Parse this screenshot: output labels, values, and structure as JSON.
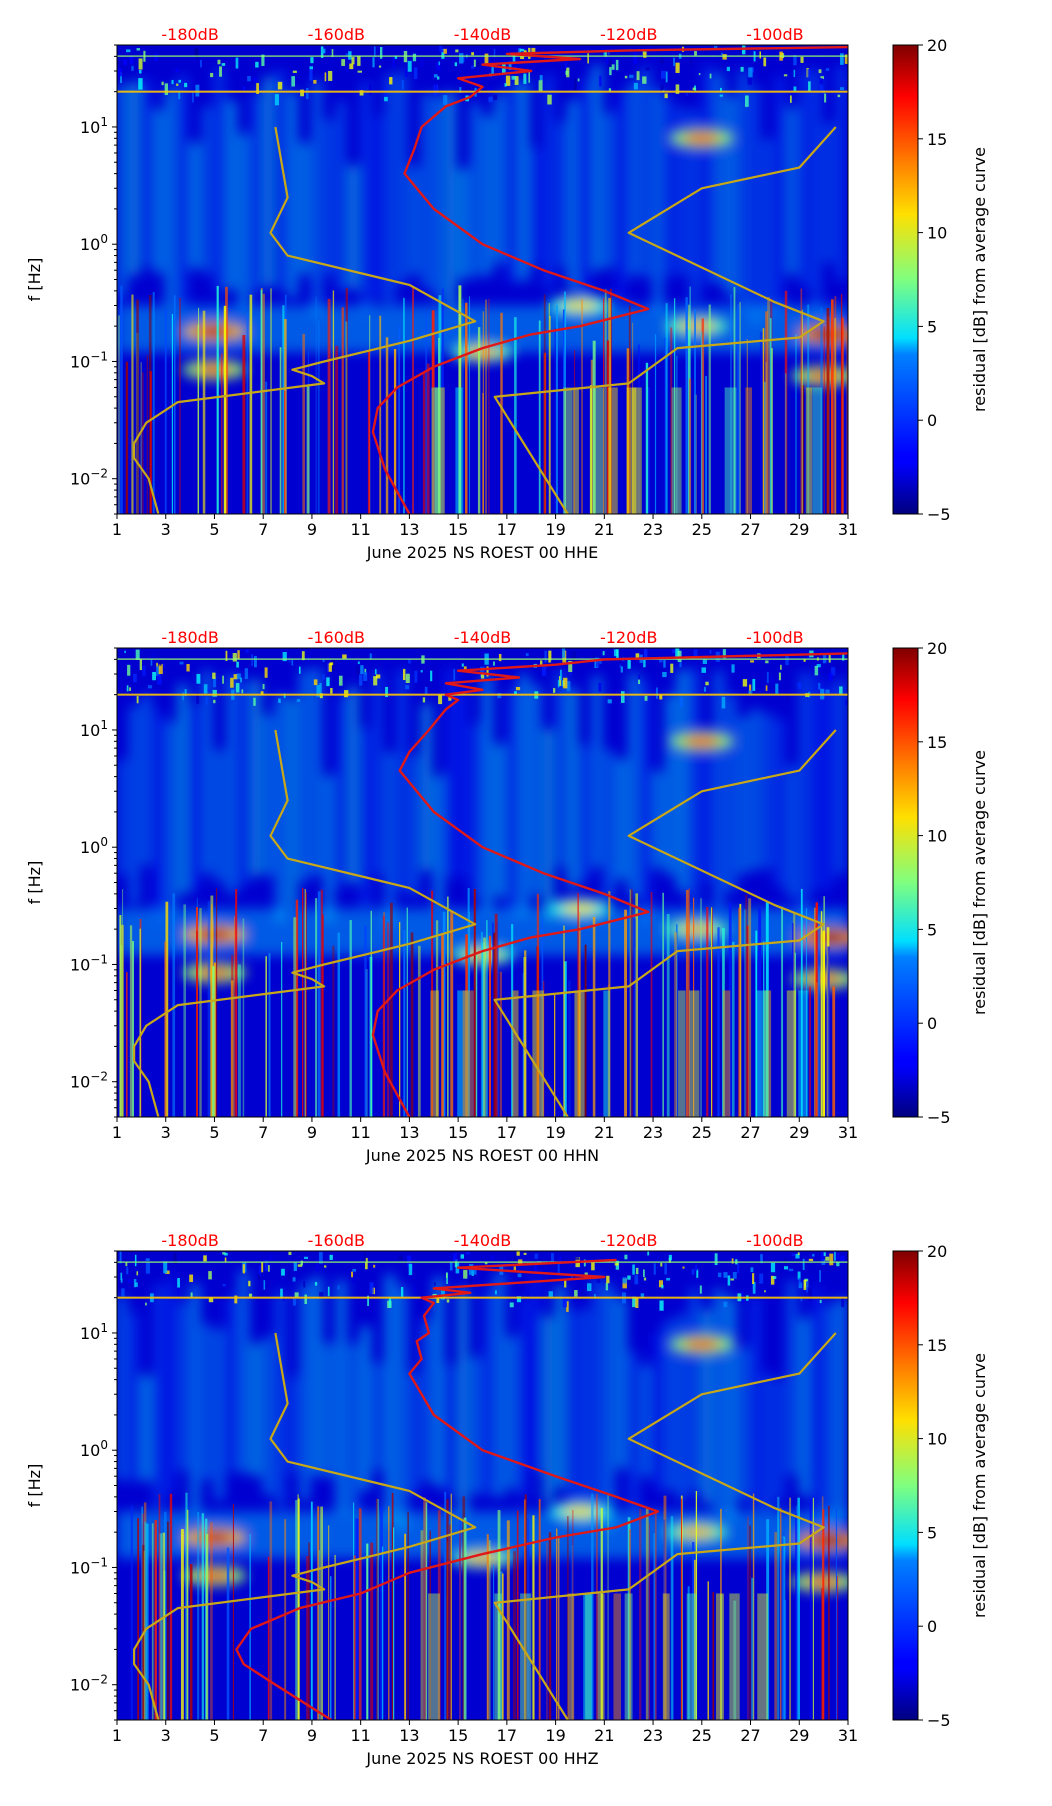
{
  "chart_data": [
    {
      "type": "heatmap",
      "xlabel": "June 2025 NS ROEST 00 HHE",
      "ylabel": "f [Hz]",
      "colorbar_label": "residual [dB] from average curve",
      "x_ticks": [
        "1",
        "3",
        "5",
        "7",
        "9",
        "11",
        "13",
        "15",
        "17",
        "19",
        "21",
        "23",
        "25",
        "27",
        "29",
        "31"
      ],
      "xlim": [
        1,
        31
      ],
      "ylim": [
        0.005,
        50
      ],
      "yscale": "log",
      "y_ticks": [
        {
          "value": 0.01,
          "base": "10",
          "exp": "−2"
        },
        {
          "value": 0.1,
          "base": "10",
          "exp": "−1"
        },
        {
          "value": 1,
          "base": "10",
          "exp": "0"
        },
        {
          "value": 10,
          "base": "10",
          "exp": "1"
        }
      ],
      "clim": [
        -5,
        20
      ],
      "colorbar_ticks": [
        "20",
        "15",
        "10",
        "5",
        "0",
        "−5"
      ],
      "top_db_labels": [
        {
          "x": 4,
          "text": "-180dB"
        },
        {
          "x": 10,
          "text": "-160dB"
        },
        {
          "x": 16,
          "text": "-140dB"
        },
        {
          "x": 22,
          "text": "-120dB"
        },
        {
          "x": 28,
          "text": "-100dB"
        }
      ],
      "hot_spots": [
        {
          "x": 5.0,
          "f": 0.18,
          "value": 18
        },
        {
          "x": 5.0,
          "f": 0.085,
          "value": 14
        },
        {
          "x": 16.0,
          "f": 0.12,
          "value": 12
        },
        {
          "x": 20.0,
          "f": 0.3,
          "value": 11
        },
        {
          "x": 24.8,
          "f": 0.2,
          "value": 12
        },
        {
          "x": 25.0,
          "f": 8.0,
          "value": 14
        },
        {
          "x": 30.2,
          "f": 0.17,
          "value": 19
        },
        {
          "x": 30.0,
          "f": 0.075,
          "value": 14
        }
      ],
      "series": [
        {
          "name": "high noise model",
          "color": "#c8a818",
          "points": [
            [
              7.5,
              10
            ],
            [
              8.0,
              2.5
            ],
            [
              7.3,
              1.25
            ],
            [
              8.0,
              0.8
            ],
            [
              13.0,
              0.45
            ],
            [
              15.7,
              0.22
            ],
            [
              13.0,
              0.15
            ],
            [
              9.5,
              0.1
            ],
            [
              8.2,
              0.085
            ],
            [
              9.0,
              0.075
            ],
            [
              9.5,
              0.065
            ],
            [
              3.5,
              0.045
            ],
            [
              2.2,
              0.03
            ],
            [
              1.7,
              0.02
            ],
            [
              1.7,
              0.015
            ],
            [
              2.3,
              0.01
            ],
            [
              2.7,
              0.005
            ]
          ]
        },
        {
          "name": "low noise model",
          "color": "#c8a818",
          "points": [
            [
              19.5,
              0.005
            ],
            [
              16.5,
              0.05
            ],
            [
              22.0,
              0.065
            ],
            [
              24.0,
              0.13
            ],
            [
              29.0,
              0.16
            ],
            [
              30.0,
              0.22
            ],
            [
              28.0,
              0.32
            ],
            [
              22.0,
              1.25
            ],
            [
              25.0,
              3.0
            ],
            [
              29.0,
              4.5
            ],
            [
              30.5,
              10
            ]
          ]
        },
        {
          "name": "mean PSD",
          "color": "#e01818",
          "points": [
            [
              13.0,
              0.005
            ],
            [
              12.0,
              0.012
            ],
            [
              11.5,
              0.025
            ],
            [
              11.7,
              0.04
            ],
            [
              12.5,
              0.06
            ],
            [
              14.0,
              0.09
            ],
            [
              16.0,
              0.13
            ],
            [
              18.0,
              0.17
            ],
            [
              20.0,
              0.2
            ],
            [
              22.8,
              0.28
            ],
            [
              21.0,
              0.4
            ],
            [
              18.5,
              0.6
            ],
            [
              16.0,
              1.0
            ],
            [
              14.0,
              2.0
            ],
            [
              12.8,
              4.0
            ],
            [
              13.2,
              6.5
            ],
            [
              13.5,
              10
            ],
            [
              14.5,
              15
            ],
            [
              15.5,
              18
            ],
            [
              16.0,
              22
            ],
            [
              15.0,
              26
            ],
            [
              18.0,
              30
            ],
            [
              16.0,
              34
            ],
            [
              20.0,
              38
            ],
            [
              17.0,
              42
            ],
            [
              22.0,
              45
            ],
            [
              31.0,
              48
            ]
          ]
        }
      ]
    },
    {
      "type": "heatmap",
      "xlabel": "June 2025 NS ROEST 00 HHN",
      "ylabel": "f [Hz]",
      "colorbar_label": "residual [dB] from average curve",
      "x_ticks": [
        "1",
        "3",
        "5",
        "7",
        "9",
        "11",
        "13",
        "15",
        "17",
        "19",
        "21",
        "23",
        "25",
        "27",
        "29",
        "31"
      ],
      "xlim": [
        1,
        31
      ],
      "ylim": [
        0.005,
        50
      ],
      "yscale": "log",
      "y_ticks": [
        {
          "value": 0.01,
          "base": "10",
          "exp": "−2"
        },
        {
          "value": 0.1,
          "base": "10",
          "exp": "−1"
        },
        {
          "value": 1,
          "base": "10",
          "exp": "0"
        },
        {
          "value": 10,
          "base": "10",
          "exp": "1"
        }
      ],
      "clim": [
        -5,
        20
      ],
      "colorbar_ticks": [
        "20",
        "15",
        "10",
        "5",
        "0",
        "−5"
      ],
      "top_db_labels": [
        {
          "x": 4,
          "text": "-180dB"
        },
        {
          "x": 10,
          "text": "-160dB"
        },
        {
          "x": 16,
          "text": "-140dB"
        },
        {
          "x": 22,
          "text": "-120dB"
        },
        {
          "x": 28,
          "text": "-100dB"
        }
      ],
      "hot_spots": [
        {
          "x": 5.0,
          "f": 0.18,
          "value": 18
        },
        {
          "x": 5.0,
          "f": 0.085,
          "value": 14
        },
        {
          "x": 16.0,
          "f": 0.12,
          "value": 12
        },
        {
          "x": 20.0,
          "f": 0.3,
          "value": 11
        },
        {
          "x": 24.8,
          "f": 0.2,
          "value": 12
        },
        {
          "x": 25.0,
          "f": 8.0,
          "value": 14
        },
        {
          "x": 30.2,
          "f": 0.17,
          "value": 19
        },
        {
          "x": 30.0,
          "f": 0.075,
          "value": 14
        }
      ],
      "series": [
        {
          "name": "high noise model",
          "color": "#c8a818",
          "points": [
            [
              7.5,
              10
            ],
            [
              8.0,
              2.5
            ],
            [
              7.3,
              1.25
            ],
            [
              8.0,
              0.8
            ],
            [
              13.0,
              0.45
            ],
            [
              15.7,
              0.22
            ],
            [
              13.0,
              0.15
            ],
            [
              9.5,
              0.1
            ],
            [
              8.2,
              0.085
            ],
            [
              9.0,
              0.075
            ],
            [
              9.5,
              0.065
            ],
            [
              3.5,
              0.045
            ],
            [
              2.2,
              0.03
            ],
            [
              1.7,
              0.02
            ],
            [
              1.7,
              0.015
            ],
            [
              2.3,
              0.01
            ],
            [
              2.7,
              0.005
            ]
          ]
        },
        {
          "name": "low noise model",
          "color": "#c8a818",
          "points": [
            [
              19.5,
              0.005
            ],
            [
              16.5,
              0.05
            ],
            [
              22.0,
              0.065
            ],
            [
              24.0,
              0.13
            ],
            [
              29.0,
              0.16
            ],
            [
              30.0,
              0.22
            ],
            [
              28.0,
              0.32
            ],
            [
              22.0,
              1.25
            ],
            [
              25.0,
              3.0
            ],
            [
              29.0,
              4.5
            ],
            [
              30.5,
              10
            ]
          ]
        },
        {
          "name": "mean PSD",
          "color": "#e01818",
          "points": [
            [
              13.0,
              0.005
            ],
            [
              12.0,
              0.012
            ],
            [
              11.5,
              0.025
            ],
            [
              11.7,
              0.04
            ],
            [
              12.5,
              0.06
            ],
            [
              14.0,
              0.09
            ],
            [
              16.0,
              0.13
            ],
            [
              18.0,
              0.17
            ],
            [
              20.0,
              0.2
            ],
            [
              22.8,
              0.28
            ],
            [
              21.0,
              0.4
            ],
            [
              18.5,
              0.6
            ],
            [
              16.0,
              1.0
            ],
            [
              14.0,
              2.0
            ],
            [
              12.6,
              4.5
            ],
            [
              13.0,
              6.5
            ],
            [
              13.8,
              10
            ],
            [
              14.5,
              15
            ],
            [
              15.0,
              18
            ],
            [
              14.5,
              20
            ],
            [
              16.0,
              22
            ],
            [
              14.5,
              25
            ],
            [
              17.5,
              28
            ],
            [
              15.0,
              32
            ],
            [
              19.0,
              36
            ],
            [
              21.0,
              40
            ],
            [
              31.0,
              45
            ]
          ]
        }
      ]
    },
    {
      "type": "heatmap",
      "xlabel": "June 2025 NS ROEST 00 HHZ",
      "ylabel": "f [Hz]",
      "colorbar_label": "residual [dB] from average curve",
      "x_ticks": [
        "1",
        "3",
        "5",
        "7",
        "9",
        "11",
        "13",
        "15",
        "17",
        "19",
        "21",
        "23",
        "25",
        "27",
        "29",
        "31"
      ],
      "xlim": [
        1,
        31
      ],
      "ylim": [
        0.005,
        50
      ],
      "yscale": "log",
      "y_ticks": [
        {
          "value": 0.01,
          "base": "10",
          "exp": "−2"
        },
        {
          "value": 0.1,
          "base": "10",
          "exp": "−1"
        },
        {
          "value": 1,
          "base": "10",
          "exp": "0"
        },
        {
          "value": 10,
          "base": "10",
          "exp": "1"
        }
      ],
      "clim": [
        -5,
        20
      ],
      "colorbar_ticks": [
        "20",
        "15",
        "10",
        "5",
        "0",
        "−5"
      ],
      "top_db_labels": [
        {
          "x": 4,
          "text": "-180dB"
        },
        {
          "x": 10,
          "text": "-160dB"
        },
        {
          "x": 16,
          "text": "-140dB"
        },
        {
          "x": 22,
          "text": "-120dB"
        },
        {
          "x": 28,
          "text": "-100dB"
        }
      ],
      "hot_spots": [
        {
          "x": 5.0,
          "f": 0.18,
          "value": 18
        },
        {
          "x": 5.0,
          "f": 0.085,
          "value": 14
        },
        {
          "x": 16.0,
          "f": 0.12,
          "value": 12
        },
        {
          "x": 20.0,
          "f": 0.3,
          "value": 11
        },
        {
          "x": 24.8,
          "f": 0.2,
          "value": 12
        },
        {
          "x": 25.0,
          "f": 8.0,
          "value": 14
        },
        {
          "x": 30.2,
          "f": 0.17,
          "value": 19
        },
        {
          "x": 30.0,
          "f": 0.075,
          "value": 14
        }
      ],
      "series": [
        {
          "name": "high noise model",
          "color": "#c8a818",
          "points": [
            [
              7.5,
              10
            ],
            [
              8.0,
              2.5
            ],
            [
              7.3,
              1.25
            ],
            [
              8.0,
              0.8
            ],
            [
              13.0,
              0.45
            ],
            [
              15.7,
              0.22
            ],
            [
              13.0,
              0.15
            ],
            [
              9.5,
              0.1
            ],
            [
              8.2,
              0.085
            ],
            [
              9.0,
              0.075
            ],
            [
              9.5,
              0.065
            ],
            [
              3.5,
              0.045
            ],
            [
              2.2,
              0.03
            ],
            [
              1.7,
              0.02
            ],
            [
              1.7,
              0.015
            ],
            [
              2.3,
              0.01
            ],
            [
              2.7,
              0.005
            ]
          ]
        },
        {
          "name": "low noise model",
          "color": "#c8a818",
          "points": [
            [
              19.5,
              0.005
            ],
            [
              16.5,
              0.05
            ],
            [
              22.0,
              0.065
            ],
            [
              24.0,
              0.13
            ],
            [
              29.0,
              0.16
            ],
            [
              30.0,
              0.22
            ],
            [
              28.0,
              0.32
            ],
            [
              22.0,
              1.25
            ],
            [
              25.0,
              3.0
            ],
            [
              29.0,
              4.5
            ],
            [
              30.5,
              10
            ]
          ]
        },
        {
          "name": "mean PSD",
          "color": "#e01818",
          "points": [
            [
              9.8,
              0.005
            ],
            [
              7.5,
              0.01
            ],
            [
              6.2,
              0.015
            ],
            [
              5.9,
              0.02
            ],
            [
              6.5,
              0.03
            ],
            [
              8.5,
              0.045
            ],
            [
              11.0,
              0.06
            ],
            [
              13.0,
              0.09
            ],
            [
              16.0,
              0.13
            ],
            [
              19.0,
              0.18
            ],
            [
              21.5,
              0.22
            ],
            [
              23.2,
              0.3
            ],
            [
              21.5,
              0.4
            ],
            [
              19.0,
              0.6
            ],
            [
              16.0,
              1.0
            ],
            [
              14.0,
              2.0
            ],
            [
              13.0,
              4.5
            ],
            [
              13.5,
              6.0
            ],
            [
              13.3,
              8.5
            ],
            [
              13.8,
              10
            ],
            [
              13.6,
              14
            ],
            [
              14.0,
              18
            ],
            [
              13.5,
              20
            ],
            [
              15.5,
              22
            ],
            [
              14.0,
              24
            ],
            [
              21.0,
              30
            ],
            [
              15.0,
              36
            ],
            [
              21.5,
              42
            ]
          ]
        }
      ]
    }
  ]
}
